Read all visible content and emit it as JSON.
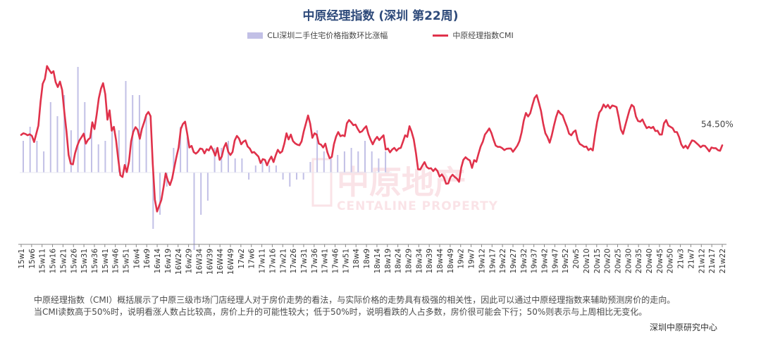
{
  "title": "中原经理指数 (深圳 第22周)",
  "legend": {
    "bar_label": "CLI深圳二手住宅价格指数环比涨幅",
    "line_label": "中原经理指数CMI"
  },
  "colors": {
    "bar": "#c2c0e6",
    "line": "#e0324b",
    "title": "#2e4a7a"
  },
  "watermark": {
    "cn": "中原地产",
    "en": "CENTALINE PROPERTY"
  },
  "last_label": "54.50%",
  "notes": [
    "中原经理指数（CMI）概括展示了中原三级市场门店经理人对于房价走势的看法，与实际价格的走势具有极强的相关性，因此可以通过中原经理指数来辅助预测房价的走向。",
    "当CMI读数高于50%时，说明看涨人数占比较高，房价上升的可能性较大；低于50%时，说明看跌的人占多数，房价很可能会下行；50%则表示与上周相比无变化。"
  ],
  "source": "深圳中原研究中心",
  "chart_data": {
    "type": "line",
    "x_ticks": [
      "15w1",
      "15w6",
      "15w11",
      "15w16",
      "15w21",
      "15w26",
      "15w31",
      "15w36",
      "15w41",
      "15w46",
      "15w51",
      "16w4",
      "16w9",
      "16w14",
      "16w19",
      "16W24",
      "16w29",
      "16W34",
      "16W39",
      "16W44",
      "16W49",
      "17w2",
      "17w6",
      "17w11",
      "17w16",
      "17w21",
      "17w26",
      "17w31",
      "17w36",
      "17w41",
      "17w46",
      "17w51",
      "18w4",
      "18w9",
      "18w14",
      "18w19",
      "18w24",
      "18w29",
      "18w34",
      "18w39",
      "18w44",
      "18w49",
      "19w2",
      "19w7",
      "19w12",
      "19w17",
      "19w22",
      "19w27",
      "19w32",
      "19w37",
      "19w42",
      "19w47",
      "19w52",
      "20w5",
      "20w10",
      "20w15",
      "20w20",
      "20w25",
      "20w30",
      "20w35",
      "20w40",
      "20w45",
      "20w50",
      "21w3",
      "21w7",
      "21w12",
      "21w17",
      "21w22"
    ],
    "series": [
      {
        "name": "中原经理指数CMI",
        "kind": "line",
        "values": [
          57.7,
          58.2,
          58,
          57.6,
          57.9,
          57.4,
          55.5,
          58,
          60.6,
          68,
          73.5,
          75,
          79,
          77.8,
          76.8,
          77.4,
          74,
          72.5,
          74.2,
          71.6,
          65,
          58.9,
          51.5,
          48.8,
          48.6,
          52,
          54.3,
          56,
          57,
          58.1,
          55,
          56.2,
          56.8,
          61.6,
          59.5,
          64,
          69,
          72,
          73.7,
          70.3,
          62.4,
          65.3,
          59,
          60.2,
          56.1,
          50.2,
          45.2,
          44.7,
          48.4,
          46.2,
          49.5,
          55.7,
          58.7,
          60.1,
          59.3,
          56.5,
          59.6,
          61.6,
          63.9,
          64.8,
          63.5,
          48.7,
          37.7,
          34,
          35.8,
          37.6,
          41.5,
          45.8,
          43.6,
          42.2,
          44.2,
          47.7,
          50.9,
          53.8,
          59.5,
          61.1,
          61.8,
          58.1,
          53.8,
          54.3,
          52.4,
          51.9,
          52.5,
          53.5,
          53.3,
          52,
          53.3,
          52.9,
          54.2,
          52.9,
          51.3,
          53.7,
          50,
          51,
          53.8,
          55.2,
          52.5,
          51.5,
          52.4,
          56,
          57.4,
          56.6,
          54.8,
          55.6,
          56,
          54.1,
          53.5,
          52.2,
          52.4,
          51.7,
          51,
          49,
          50.2,
          50,
          48.3,
          49.9,
          51,
          49.3,
          51.4,
          53.1,
          52.1,
          52.6,
          55,
          58.2,
          56.3,
          57.8,
          55.8,
          55.1,
          54.7,
          54.5,
          55.7,
          58.8,
          61.2,
          63.7,
          61.2,
          56.8,
          58.2,
          57.8,
          55,
          54.7,
          53.8,
          55,
          52.3,
          50.5,
          50.9,
          54.8,
          57.2,
          58.6,
          57.3,
          57.6,
          57.3,
          61.3,
          62.3,
          61.6,
          60.7,
          60.9,
          59.6,
          58.5,
          58.8,
          59.7,
          60.4,
          57.9,
          56.2,
          54.8,
          56.2,
          57.1,
          56.1,
          56.9,
          57.6,
          53.2,
          53.5,
          52.3,
          53.2,
          53.7,
          52.8,
          53.5,
          53.7,
          55.6,
          57.6,
          57.1,
          60.4,
          58.7,
          56.3,
          52.1,
          47.1,
          47,
          48.2,
          49.3,
          47.8,
          47.3,
          47.4,
          46.5,
          47.3,
          46.5,
          44.8,
          45.5,
          44.5,
          42.6,
          42.7,
          44.6,
          45.4,
          44.7,
          44.2,
          43.2,
          47.6,
          50,
          50.8,
          50.2,
          49.8,
          47.5,
          49.9,
          49.4,
          51.8,
          54.1,
          55.6,
          57.8,
          58.7,
          59.7,
          58.3,
          56.2,
          54.4,
          54,
          54,
          53.6,
          53,
          53.4,
          53.5,
          53.5,
          52.5,
          53.4,
          54.4,
          55.8,
          58.5,
          62.1,
          64.5,
          63.4,
          64.4,
          66.9,
          69.1,
          70,
          67.6,
          65.1,
          61.2,
          58.2,
          57,
          55.3,
          57.6,
          60.6,
          63.3,
          65.2,
          64.3,
          63.8,
          61.9,
          60.2,
          58.1,
          57.6,
          58.6,
          59.1,
          56.1,
          54.9,
          54.5,
          54,
          54.1,
          53,
          53.5,
          52.9,
          57.7,
          61.7,
          64.6,
          65.5,
          67.1,
          66.2,
          67,
          65.9,
          66.8,
          66.6,
          66.3,
          63.2,
          59.4,
          58,
          60.5,
          63,
          65.4,
          67,
          66.4,
          63.4,
          62,
          61.8,
          62.5,
          61,
          59.8,
          60.2,
          59.8,
          60.2,
          58.9,
          59,
          57.8,
          57.8,
          61.3,
          62.3,
          60.6,
          60.2,
          59.8,
          58.6,
          58.6,
          57,
          54.8,
          53.7,
          54.4,
          53.5,
          54.8,
          56,
          55.8,
          55.2,
          54.6,
          53.9,
          54.4,
          54.3,
          53.5,
          52.6,
          53.8,
          53.6,
          53.6,
          53,
          52.8,
          54.5
        ],
        "note": "weekly CMI readings (%), 15w1 to 21w22"
      },
      {
        "name": "CLI深圳二手住宅价格指数环比涨幅",
        "kind": "bar",
        "values": [
          0.45,
          0.65,
          0.45,
          0.3,
          1.0,
          0.8,
          1.1,
          0.6,
          1.5,
          1.0,
          0.6,
          0.4,
          0.45,
          0.65,
          0.6,
          1.3,
          1.1,
          1.1,
          0.8,
          -0.8,
          -0.6,
          -0.2,
          0.35,
          0.65,
          0.5,
          -1.1,
          -0.6,
          -0.4,
          0.35,
          0.35,
          0.45,
          0.2,
          0.2,
          -0.1,
          0.1,
          0.15,
          0.1,
          0.1,
          -0.1,
          -0.2,
          -0.1,
          -0.1,
          0.15,
          0.6,
          0.3,
          0.2,
          0.25,
          0.3,
          0.35,
          0.3,
          0.45,
          0.3,
          0.2,
          0.3
        ],
        "note": "weekly % change, shown for 15w1–20w15 only"
      }
    ],
    "ylim": [
      28,
      82
    ],
    "y_scale": "CMI reading (%)",
    "legend_position": "top-center",
    "grid": false
  }
}
